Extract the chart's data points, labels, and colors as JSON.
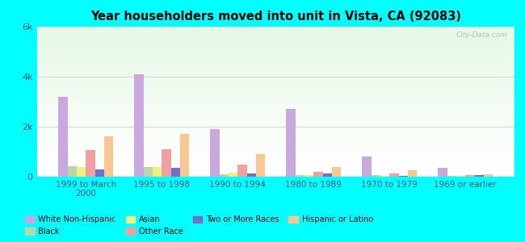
{
  "title": "Year householders moved into unit in Vista, CA (92083)",
  "background_color": "#00FFFF",
  "categories": [
    "1999 to March\n2000",
    "1995 to 1998",
    "1990 to 1994",
    "1980 to 1989",
    "1970 to 1979",
    "1969 or earlier"
  ],
  "series": [
    {
      "name": "White Non-Hispanic",
      "color": "#c9a8e0",
      "values": [
        3200,
        4100,
        1900,
        2700,
        800,
        350
      ]
    },
    {
      "name": "Black",
      "color": "#b8d8a8",
      "values": [
        420,
        380,
        100,
        80,
        50,
        30
      ]
    },
    {
      "name": "Asian",
      "color": "#f0f080",
      "values": [
        380,
        400,
        150,
        60,
        40,
        20
      ]
    },
    {
      "name": "Other Race",
      "color": "#f0a0a0",
      "values": [
        1050,
        1100,
        500,
        200,
        120,
        60
      ]
    },
    {
      "name": "Two or More Races",
      "color": "#7070cc",
      "values": [
        280,
        340,
        120,
        140,
        30,
        80
      ]
    },
    {
      "name": "Hispanic or Latino",
      "color": "#f8c890",
      "values": [
        1600,
        1700,
        900,
        380,
        250,
        110
      ]
    }
  ],
  "ylim": [
    0,
    6000
  ],
  "yticks": [
    0,
    2000,
    4000,
    6000
  ],
  "ytick_labels": [
    "0",
    "2k",
    "4k",
    "6k"
  ],
  "grid_color": "#cccccc",
  "watermark": "City-Data.com",
  "legend_items": [
    {
      "label": "White Non-Hispanic",
      "color": "#c9a8e0"
    },
    {
      "label": "Black",
      "color": "#b8d8a8"
    },
    {
      "label": "Asian",
      "color": "#f0f080"
    },
    {
      "label": "Other Race",
      "color": "#f0a0a0"
    },
    {
      "label": "Two or More Races",
      "color": "#7070cc"
    },
    {
      "label": "Hispanic or Latino",
      "color": "#f8c890"
    }
  ]
}
